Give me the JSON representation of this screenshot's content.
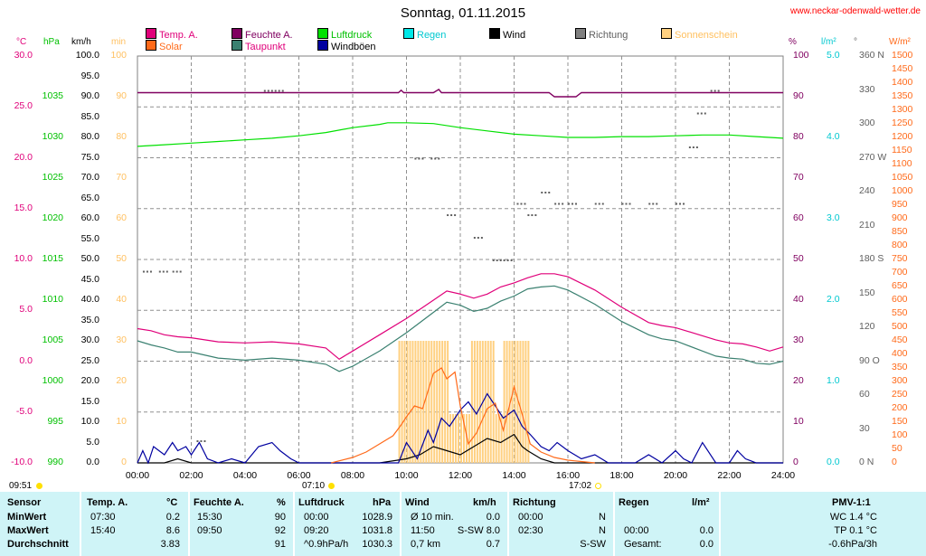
{
  "header": {
    "title": "Sonntag, 01.11.2015",
    "site": "www.neckar-odenwald-wetter.de"
  },
  "legend": [
    {
      "label": "Temp. A.",
      "color": "#e0007a",
      "text_color": "#e0007a"
    },
    {
      "label": "Feuchte A.",
      "color": "#800060",
      "text_color": "#800060"
    },
    {
      "label": "Luftdruck",
      "color": "#00e000",
      "text_color": "#00c000"
    },
    {
      "label": "Regen",
      "color": "#00e8e8",
      "text_color": "#00c8d0"
    },
    {
      "label": "Wind",
      "color": "#000000",
      "text_color": "#000000"
    },
    {
      "label": "Richtung",
      "color": "#808080",
      "text_color": "#606060"
    },
    {
      "label": "Sonnenschein",
      "color": "#ffd080",
      "text_color": "#ffc060"
    },
    {
      "label": "Solar",
      "color": "#ff6a1a",
      "text_color": "#ff6a1a"
    },
    {
      "label": "Taupunkt",
      "color": "#3a8070",
      "text_color": "#e0007a"
    },
    {
      "label": "Windböen",
      "color": "#0000a0",
      "text_color": "#000000"
    }
  ],
  "axis_titles": {
    "temp": "°C",
    "pressure": "hPa",
    "wind": "km/h",
    "sun": "min",
    "humidity": "%",
    "rain": "l/m²",
    "direction": "°",
    "solar": "W/m²"
  },
  "axes": {
    "temp": [
      "30.0",
      "25.0",
      "20.0",
      "15.0",
      "10.0",
      "5.0",
      "0.0",
      "-5.0",
      "-10.0"
    ],
    "pressure": [
      "1035",
      "1030",
      "1025",
      "1020",
      "1015",
      "1010",
      "1005",
      "1000",
      "995",
      "990"
    ],
    "wind": [
      "100.0",
      "95.0",
      "90.0",
      "85.0",
      "80.0",
      "75.0",
      "70.0",
      "65.0",
      "60.0",
      "55.0",
      "50.0",
      "45.0",
      "40.0",
      "35.0",
      "30.0",
      "25.0",
      "20.0",
      "15.0",
      "10.0",
      "5.0",
      "0.0"
    ],
    "sun": [
      "100",
      "90",
      "80",
      "70",
      "60",
      "50",
      "40",
      "30",
      "20",
      "10",
      "0"
    ],
    "humidity": [
      "100",
      "90",
      "80",
      "70",
      "60",
      "50",
      "40",
      "30",
      "20",
      "10",
      "0"
    ],
    "rain": [
      "5.0",
      "4.0",
      "3.0",
      "2.0",
      "1.0",
      "0.0"
    ],
    "direction": [
      "360 N",
      "330",
      "300",
      "270 W",
      "240",
      "210",
      "180 S",
      "150",
      "120",
      "90 O",
      "60",
      "30",
      "0 N"
    ],
    "solar": [
      "1500",
      "1450",
      "1400",
      "1350",
      "1300",
      "1250",
      "1200",
      "1150",
      "1100",
      "1050",
      "1000",
      "950",
      "900",
      "850",
      "800",
      "750",
      "700",
      "650",
      "600",
      "550",
      "500",
      "450",
      "400",
      "350",
      "300",
      "250",
      "200",
      "150",
      "100",
      "50",
      "0"
    ],
    "time": [
      "00:00",
      "02:00",
      "04:00",
      "06:00",
      "08:00",
      "10:00",
      "12:00",
      "14:00",
      "16:00",
      "18:00",
      "20:00",
      "22:00",
      "24:00"
    ]
  },
  "sun_events": {
    "moon_rise": "09:51",
    "sunrise": "07:10",
    "sunset": "17:02"
  },
  "chart_data": {
    "type": "line",
    "title": "Sonntag, 01.11.2015",
    "x_range": [
      "00:00",
      "24:00"
    ],
    "grid": true,
    "series": [
      {
        "name": "Temp. A.",
        "unit": "°C",
        "axis": "temp",
        "color": "#e0007a",
        "x": [
          0,
          0.5,
          1,
          1.5,
          2,
          3,
          4,
          5,
          6,
          7,
          7.5,
          8,
          9,
          10,
          11,
          11.5,
          12,
          12.5,
          13,
          13.5,
          14,
          14.5,
          15,
          15.5,
          16,
          17,
          18,
          19,
          19.5,
          20,
          21,
          21.5,
          22,
          22.5,
          23,
          23.5,
          24
        ],
        "y": [
          3.2,
          3.0,
          2.6,
          2.4,
          2.3,
          1.9,
          1.8,
          1.9,
          1.7,
          1.3,
          0.2,
          1.0,
          2.6,
          4.2,
          6.0,
          6.9,
          6.6,
          6.2,
          6.6,
          7.3,
          7.7,
          8.2,
          8.6,
          8.6,
          8.3,
          7.0,
          5.3,
          3.8,
          3.5,
          3.3,
          2.5,
          2.1,
          1.8,
          1.7,
          1.4,
          1.0,
          1.4
        ]
      },
      {
        "name": "Taupunkt",
        "unit": "°C",
        "axis": "temp",
        "color": "#3a8070",
        "x": [
          0,
          0.5,
          1,
          1.5,
          2,
          3,
          4,
          5,
          6,
          7,
          7.5,
          8,
          9,
          10,
          11,
          11.5,
          12,
          12.5,
          13,
          13.5,
          14,
          14.5,
          15,
          15.5,
          16,
          17,
          18,
          19,
          19.5,
          20,
          21,
          21.5,
          22,
          22.5,
          23,
          23.5,
          24
        ],
        "y": [
          2.0,
          1.6,
          1.3,
          0.9,
          0.9,
          0.3,
          0.1,
          0.3,
          0.1,
          -0.3,
          -1.0,
          -0.5,
          1.0,
          2.8,
          4.8,
          5.8,
          5.5,
          4.9,
          5.2,
          5.9,
          6.4,
          7.1,
          7.3,
          7.4,
          7.0,
          5.6,
          3.9,
          2.6,
          2.2,
          2.0,
          1.0,
          0.5,
          0.3,
          0.2,
          -0.2,
          -0.3,
          0.0
        ]
      },
      {
        "name": "Feuchte A.",
        "unit": "%",
        "axis": "humidity",
        "color": "#800060",
        "x": [
          0,
          9.7,
          9.8,
          9.9,
          10,
          11,
          11.2,
          11.3,
          11.4,
          12,
          15.3,
          15.5,
          16,
          16.3,
          16.5,
          24
        ],
        "y": [
          91,
          91,
          91.6,
          91,
          91,
          91,
          91.8,
          91,
          91,
          91,
          91,
          90,
          90,
          90,
          91,
          91
        ]
      },
      {
        "name": "Luftdruck",
        "unit": "hPa",
        "axis": "pressure",
        "color": "#00e000",
        "x": [
          0,
          1,
          2,
          3,
          4,
          5,
          6,
          7,
          8,
          9,
          9.3,
          10,
          11,
          12,
          13,
          14,
          15,
          16,
          17,
          18,
          19,
          20,
          21,
          22,
          23,
          24
        ],
        "y": [
          1028.9,
          1029.1,
          1029.3,
          1029.5,
          1029.7,
          1029.9,
          1030.2,
          1030.6,
          1031.2,
          1031.6,
          1031.8,
          1031.8,
          1031.7,
          1031.2,
          1030.8,
          1030.4,
          1030.2,
          1030.0,
          1030.0,
          1030.1,
          1030.1,
          1030.2,
          1030.3,
          1030.3,
          1030.1,
          1029.9
        ]
      },
      {
        "name": "Wind",
        "unit": "km/h",
        "axis": "wind",
        "color": "#000000",
        "x": [
          0,
          1,
          1.5,
          2,
          3,
          4,
          5,
          6,
          7,
          8,
          9,
          10,
          10.5,
          11,
          11.5,
          12,
          12.5,
          13,
          13.5,
          14,
          14.3,
          14.5,
          15,
          15.5,
          16,
          17,
          18,
          19,
          20,
          21,
          22,
          23,
          24
        ],
        "y": [
          0,
          0,
          1,
          0,
          0,
          0,
          0,
          0,
          0,
          0,
          0,
          1,
          2,
          4,
          3,
          2,
          4,
          6,
          5,
          7,
          4,
          3,
          1,
          0,
          0,
          0,
          0,
          0,
          0,
          0,
          0,
          0,
          0
        ]
      },
      {
        "name": "Windböen",
        "unit": "km/h",
        "axis": "wind",
        "color": "#0000a0",
        "x": [
          0,
          0.2,
          0.4,
          0.6,
          1,
          1.3,
          1.5,
          1.8,
          2,
          2.3,
          2.6,
          3,
          3.5,
          4,
          4.5,
          5,
          5.3,
          5.7,
          6,
          6.5,
          7,
          8,
          9,
          9.7,
          10,
          10.4,
          10.8,
          11,
          11.3,
          11.6,
          12,
          12.3,
          12.6,
          13,
          13.3,
          13.6,
          14,
          14.3,
          14.6,
          15,
          15.3,
          15.6,
          16,
          16.5,
          17,
          17.5,
          18,
          18.5,
          19,
          19.5,
          20,
          20.3,
          20.6,
          21,
          21.5,
          22,
          22.3,
          22.6,
          23,
          24
        ],
        "y": [
          0,
          3,
          0,
          4,
          2,
          5,
          3,
          4,
          2,
          5,
          1,
          0,
          1,
          0,
          4,
          5,
          3,
          1,
          0,
          0,
          0,
          0,
          0,
          0,
          5,
          1,
          8,
          5,
          11,
          9,
          13,
          15,
          12,
          17,
          14,
          11,
          13,
          9,
          7,
          4,
          3,
          5,
          3,
          1,
          2,
          0,
          0,
          0,
          2,
          0,
          3,
          1,
          0,
          5,
          0,
          0,
          3,
          1,
          0,
          0
        ]
      },
      {
        "name": "Solar",
        "unit": "W/m²",
        "axis": "solar",
        "color": "#ff6a1a",
        "x": [
          7.2,
          8,
          8.5,
          9,
          9.5,
          9.8,
          10,
          10.3,
          10.6,
          11,
          11.3,
          11.5,
          11.8,
          12,
          12.3,
          12.6,
          13,
          13.3,
          13.6,
          14,
          14.3,
          14.6,
          15,
          15.5,
          16,
          16.5,
          17
        ],
        "y": [
          0,
          20,
          40,
          70,
          100,
          140,
          170,
          210,
          200,
          330,
          350,
          310,
          335,
          210,
          70,
          110,
          200,
          220,
          120,
          280,
          180,
          70,
          40,
          20,
          10,
          5,
          0
        ]
      },
      {
        "name": "Richtung",
        "unit": "°",
        "axis": "direction",
        "x": [
          0.2,
          0.8,
          1.3,
          2.2,
          4.7,
          5.1,
          10.3,
          10.9,
          11.5,
          12.5,
          13.2,
          13.6,
          14.1,
          14.5,
          15,
          15.5,
          16,
          17,
          18,
          19,
          20,
          20.5,
          20.8,
          21.3
        ],
        "y": [
          170,
          170,
          170,
          20,
          330,
          330,
          270,
          270,
          220,
          200,
          180,
          180,
          230,
          220,
          240,
          230,
          230,
          230,
          230,
          230,
          230,
          280,
          310,
          330
        ]
      }
    ],
    "sunshine_bars": {
      "name": "Sonnenschein",
      "unit": "min",
      "x_start": 9.7,
      "x_end": 14.5,
      "typical": 30
    }
  },
  "table": {
    "headers": {
      "sensor": "Sensor",
      "temp": "Temp. A.",
      "temp_unit": "°C",
      "hum": "Feuchte A.",
      "hum_unit": "%",
      "press": "Luftdruck",
      "press_unit": "hPa",
      "wind": "Wind",
      "wind_unit": "km/h",
      "dir": "Richtung",
      "rain": "Regen",
      "rain_unit": "l/m²",
      "pmv": "PMV-1:1"
    },
    "rows": [
      {
        "label": "MinWert",
        "temp_time": "07:30",
        "temp_val": "0.2",
        "hum_time": "15:30",
        "hum_val": "90",
        "press_time": "00:00",
        "press_val": "1028.9",
        "wind_time": "Ø 10 min.",
        "wind_val": "0.0",
        "dir_time": "00:00",
        "dir_val": "N",
        "rain_time": "",
        "rain_val": "",
        "pmv": "WC 1.4 °C"
      },
      {
        "label": "MaxWert",
        "temp_time": "15:40",
        "temp_val": "8.6",
        "hum_time": "09:50",
        "hum_val": "92",
        "press_time": "09:20",
        "press_val": "1031.8",
        "wind_time": "11:50",
        "wind_extra": "S-SW 8.0",
        "wind_val": "",
        "dir_time": "02:30",
        "dir_val": "N",
        "rain_time": "00:00",
        "rain_val": "0.0",
        "pmv": "TP 0.1 °C"
      },
      {
        "label": "Durchschnitt",
        "temp_time": "",
        "temp_val": "3.83",
        "hum_time": "",
        "hum_val": "91",
        "press_time": "^0.9hPa/h",
        "press_val": "1030.3",
        "wind_time": "0,7 km",
        "wind_val": "0.7",
        "dir_time": "",
        "dir_val": "S-SW",
        "rain_time": "Gesamt:",
        "rain_val": "0.0",
        "pmv": "-0.6hPa/3h"
      }
    ]
  }
}
